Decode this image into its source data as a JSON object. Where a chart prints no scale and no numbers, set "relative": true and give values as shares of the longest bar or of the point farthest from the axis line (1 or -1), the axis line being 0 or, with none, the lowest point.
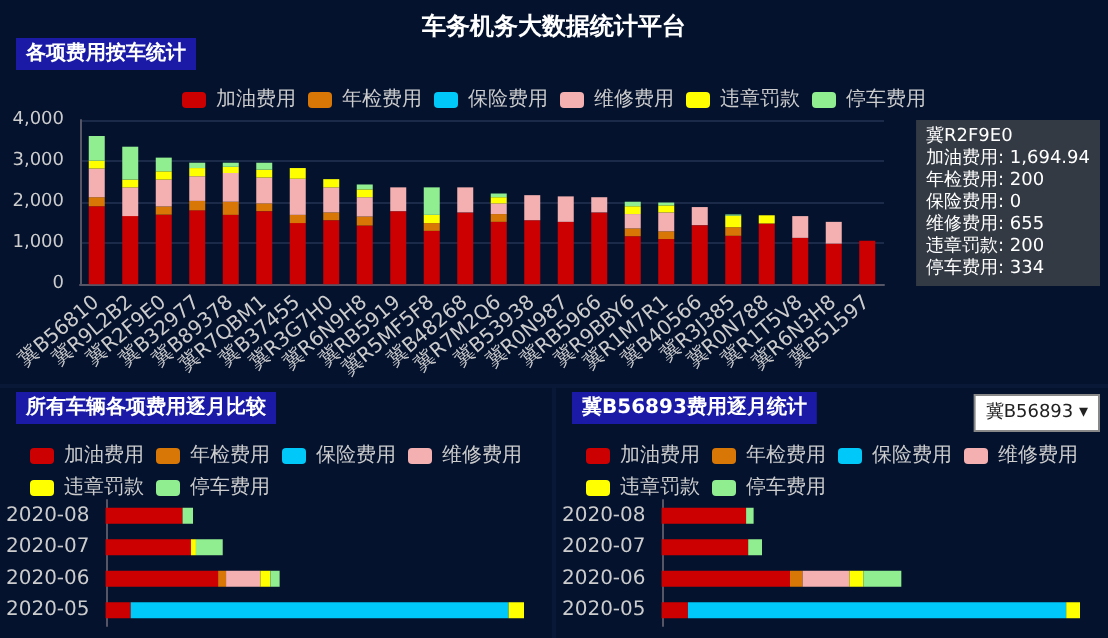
{
  "chart_data": [
    {
      "type": "bar",
      "title": "车务机务大数据统计平台",
      "subtitle": "各项费用按车统计",
      "stacked": true,
      "legend": "top",
      "grid": "y",
      "categories": [
        "冀B56810",
        "冀R9L2B2",
        "冀R2F9E0",
        "冀B32977",
        "冀B89378",
        "冀R7QBM1",
        "冀B37455",
        "冀R3G7H0",
        "冀R6N9H8",
        "冀RB5919",
        "冀R5MF5F8",
        "冀B48268",
        "冀R7M2Q6",
        "冀B53938",
        "冀R0N987",
        "冀RB5966",
        "冀R9BBY6",
        "冀R1M7R1",
        "冀B40566",
        "冀R3J385",
        "冀R0N788",
        "冀R1T5V8",
        "冀R6N3H8",
        "冀B51597"
      ],
      "ylim": [
        0,
        4000
      ],
      "yticks": [
        {
          "value": 0,
          "label": "0"
        },
        {
          "value": 1000,
          "label": "1,000"
        },
        {
          "value": 2000,
          "label": "2,000"
        },
        {
          "value": 3000,
          "label": "3,000"
        },
        {
          "value": 4000,
          "label": "4,000"
        }
      ],
      "series": [
        {
          "name": "加油费用",
          "color": "#cc0000",
          "values": [
            1900,
            1660,
            1694.94,
            1800,
            1690,
            1780,
            1490,
            1560,
            1430,
            1780,
            1300,
            1750,
            1520,
            1560,
            1520,
            1750,
            1170,
            1100,
            1440,
            1180,
            1480,
            1130,
            990,
            1060
          ]
        },
        {
          "name": "年检费用",
          "color": "#d97706",
          "values": [
            220,
            null,
            200,
            230,
            320,
            190,
            200,
            190,
            220,
            null,
            190,
            null,
            190,
            null,
            null,
            null,
            190,
            190,
            null,
            210,
            null,
            null,
            null,
            null
          ]
        },
        {
          "name": "保险费用",
          "color": "#00c8f8",
          "values": [
            null,
            null,
            0,
            null,
            null,
            null,
            null,
            null,
            null,
            null,
            null,
            null,
            null,
            null,
            null,
            null,
            null,
            null,
            null,
            null,
            null,
            null,
            null,
            null
          ]
        },
        {
          "name": "维修费用",
          "color": "#f4b0b0",
          "values": [
            700,
            700,
            655,
            600,
            700,
            630,
            880,
            610,
            470,
            580,
            null,
            610,
            260,
            610,
            620,
            370,
            350,
            460,
            440,
            null,
            null,
            530,
            530,
            null
          ]
        },
        {
          "name": "违章罚款",
          "color": "#ffff00",
          "values": [
            190,
            190,
            200,
            200,
            150,
            190,
            260,
            200,
            190,
            null,
            200,
            null,
            150,
            null,
            null,
            null,
            190,
            170,
            null,
            280,
            200,
            null,
            null,
            null
          ]
        },
        {
          "name": "停车费用",
          "color": "#90ee90",
          "values": [
            600,
            800,
            334,
            130,
            100,
            170,
            null,
            null,
            120,
            null,
            670,
            null,
            90,
            null,
            null,
            null,
            110,
            70,
            null,
            30,
            null,
            null,
            null,
            null
          ]
        }
      ],
      "annotations": [
        "冀R2F9E0",
        "加油费用: 1,694.94",
        "年检费用: 200",
        "保险费用: 0",
        "维修费用: 655",
        "违章罚款: 200",
        "停车费用: 334"
      ]
    },
    {
      "type": "bar",
      "title": "所有车辆各项费用逐月比较",
      "stacked": true,
      "orientation": "horizontal",
      "relative": true,
      "legend": "top",
      "tick_labels": "y",
      "categories": [
        "2020-08",
        "2020-07",
        "2020-06",
        "2020-05"
      ],
      "series": [
        {
          "name": "加油费用",
          "color": "#cc0000",
          "values": [
            0.184,
            0.204,
            0.269,
            0.06
          ]
        },
        {
          "name": "年检费用",
          "color": "#d97706",
          "values": [
            null,
            null,
            0.019,
            null
          ]
        },
        {
          "name": "保险费用",
          "color": "#00c8f8",
          "values": [
            null,
            null,
            null,
            0.903
          ]
        },
        {
          "name": "维修费用",
          "color": "#f4b0b0",
          "values": [
            null,
            null,
            0.082,
            null
          ]
        },
        {
          "name": "违章罚款",
          "color": "#ffff00",
          "values": [
            null,
            0.012,
            0.024,
            0.037
          ]
        },
        {
          "name": "停车费用",
          "color": "#90ee90",
          "values": [
            0.025,
            0.064,
            0.022,
            null
          ]
        }
      ]
    },
    {
      "type": "bar",
      "title": "冀B56893费用逐月统计",
      "stacked": true,
      "orientation": "horizontal",
      "relative": true,
      "legend": "top",
      "tick_labels": "y",
      "categories": [
        "2020-08",
        "2020-07",
        "2020-06",
        "2020-05"
      ],
      "series": [
        {
          "name": "加油费用",
          "color": "#cc0000",
          "values": [
            0.202,
            0.207,
            0.307,
            0.063
          ]
        },
        {
          "name": "年检费用",
          "color": "#d97706",
          "values": [
            null,
            null,
            0.03,
            null
          ]
        },
        {
          "name": "保险费用",
          "color": "#00c8f8",
          "values": [
            null,
            null,
            null,
            0.904
          ]
        },
        {
          "name": "维修费用",
          "color": "#f4b0b0",
          "values": [
            null,
            null,
            0.112,
            null
          ]
        },
        {
          "name": "违章罚款",
          "color": "#ffff00",
          "values": [
            null,
            null,
            0.033,
            0.033
          ]
        },
        {
          "name": "停车费用",
          "color": "#90ee90",
          "values": [
            0.018,
            0.033,
            0.091,
            null
          ]
        }
      ],
      "annotations": [
        "冀B56893 ▾"
      ]
    }
  ]
}
